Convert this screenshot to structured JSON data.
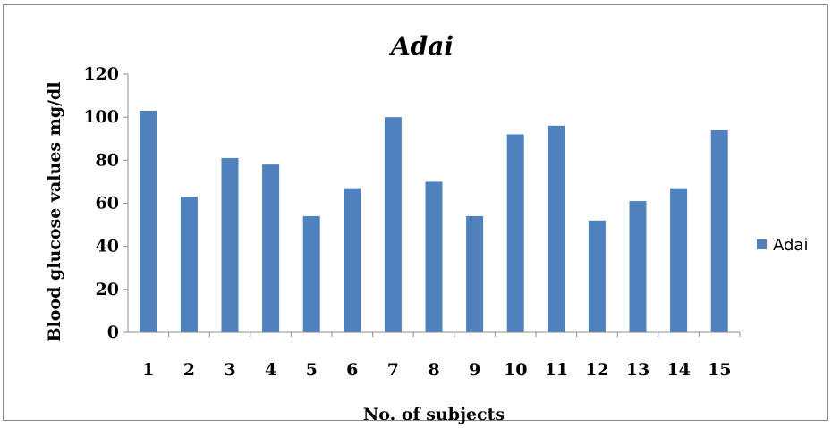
{
  "chart_data": {
    "type": "bar",
    "title": "Adai",
    "xlabel": "No. of subjects",
    "ylabel": "Blood glucose values mg/dl",
    "categories": [
      "1",
      "2",
      "3",
      "4",
      "5",
      "6",
      "7",
      "8",
      "9",
      "10",
      "11",
      "12",
      "13",
      "14",
      "15"
    ],
    "series": [
      {
        "name": "Adai",
        "values": [
          103,
          63,
          81,
          78,
          54,
          67,
          100,
          70,
          54,
          92,
          96,
          52,
          61,
          67,
          94
        ]
      }
    ],
    "ylim": [
      0,
      120
    ],
    "yticks": [
      "0",
      "20",
      "40",
      "60",
      "80",
      "100",
      "120"
    ],
    "grid": false,
    "legend_position": "right",
    "colors": {
      "bar": "#4F81BD",
      "axis": "#8c8c8c"
    }
  }
}
